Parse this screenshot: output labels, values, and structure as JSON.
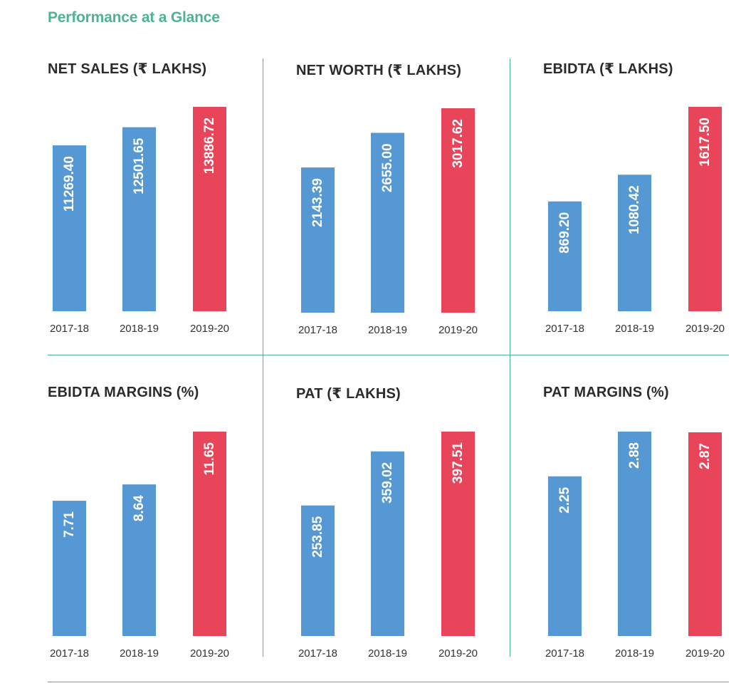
{
  "page": {
    "title": "Performance at a Glance"
  },
  "colors": {
    "accent": "#4fb38f",
    "prior_year": "#5598d3",
    "current_year": "#e8455a",
    "title_text": "#2b2b2b"
  },
  "chart_data": [
    {
      "type": "bar",
      "title": "NET SALES (₹ LAKHS)",
      "categories": [
        "2017-18",
        "2018-19",
        "2019-20"
      ],
      "values": [
        11269.4,
        12501.65,
        13886.72
      ],
      "labels": [
        "11269.40",
        "12501.65",
        "13886.72"
      ],
      "grid": false
    },
    {
      "type": "bar",
      "title": "NET WORTH (₹ LAKHS)",
      "categories": [
        "2017-18",
        "2018-19",
        "2019-20"
      ],
      "values": [
        2143.39,
        2655.0,
        3017.62
      ],
      "labels": [
        "2143.39",
        "2655.00",
        "3017.62"
      ],
      "grid": false
    },
    {
      "type": "bar",
      "title": "EBIDTA (₹ LAKHS)",
      "categories": [
        "2017-18",
        "2018-19",
        "2019-20"
      ],
      "values": [
        869.2,
        1080.42,
        1617.5
      ],
      "labels": [
        "869.20",
        "1080.42",
        "1617.50"
      ],
      "grid": false
    },
    {
      "type": "bar",
      "title": "EBIDTA MARGINS (%)",
      "categories": [
        "2017-18",
        "2018-19",
        "2019-20"
      ],
      "values": [
        7.71,
        8.64,
        11.65
      ],
      "labels": [
        "7.71",
        "8.64",
        "11.65"
      ],
      "grid": false
    },
    {
      "type": "bar",
      "title": "PAT (₹ LAKHS)",
      "categories": [
        "2017-18",
        "2018-19",
        "2019-20"
      ],
      "values": [
        253.85,
        359.02,
        397.51
      ],
      "labels": [
        "253.85",
        "359.02",
        "397.51"
      ],
      "grid": false
    },
    {
      "type": "bar",
      "title": "PAT MARGINS (%)",
      "categories": [
        "2017-18",
        "2018-19",
        "2019-20"
      ],
      "values": [
        2.25,
        2.88,
        2.87
      ],
      "labels": [
        "2.25",
        "2.88",
        "2.87"
      ],
      "grid": false
    }
  ]
}
